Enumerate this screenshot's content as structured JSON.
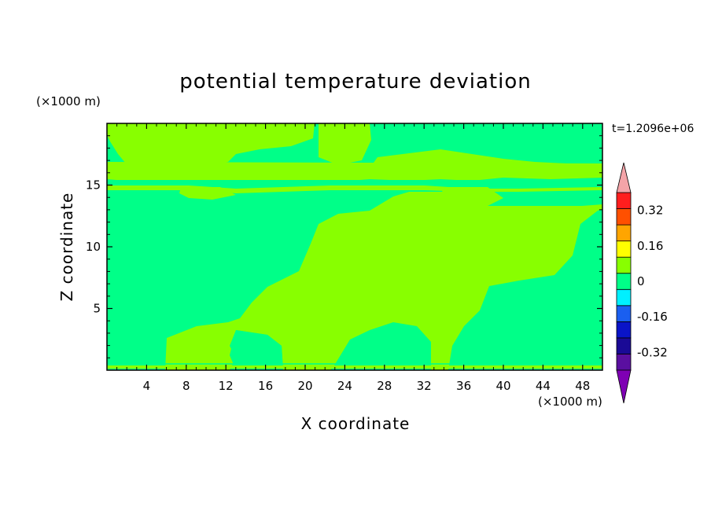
{
  "chart_data": {
    "type": "heatmap",
    "title": "potential temperature deviation",
    "xlabel": "X coordinate",
    "ylabel": "Z coordinate",
    "x_unit": "(×1000 m)",
    "y_unit": "(×1000 m)",
    "time_label": "t=1.2096e+06",
    "xlim": [
      0,
      50
    ],
    "ylim": [
      0,
      20
    ],
    "x_ticks": [
      4,
      8,
      12,
      16,
      20,
      24,
      28,
      32,
      36,
      40,
      44,
      48
    ],
    "y_ticks": [
      5,
      10,
      15
    ],
    "colorbar": {
      "levels": [
        -0.4,
        -0.32,
        -0.24,
        -0.16,
        -0.08,
        0,
        0.08,
        0.16,
        0.24,
        0.32,
        0.4
      ],
      "colors": [
        "#5a0fa0",
        "#1a0a96",
        "#0a14c8",
        "#1a5ff0",
        "#00f0ff",
        "#00ff88",
        "#88ff00",
        "#ffff00",
        "#ffa500",
        "#ff5000",
        "#ff1e1e"
      ],
      "under_color": "#7f00b4",
      "over_color": "#f4a4a8",
      "labels": [
        "0.32",
        "0.16",
        "0",
        "-0.16",
        "-0.32"
      ],
      "label_values": [
        0.32,
        0.16,
        0,
        -0.16,
        -0.32
      ]
    },
    "regions": [
      {
        "level": "0 to 0.08",
        "color": "#88ff00",
        "description": "upper warm band near z=15-17 and central warm plume"
      },
      {
        "level": "-0.08 to 0",
        "color": "#00ff88",
        "description": "background field"
      }
    ]
  }
}
